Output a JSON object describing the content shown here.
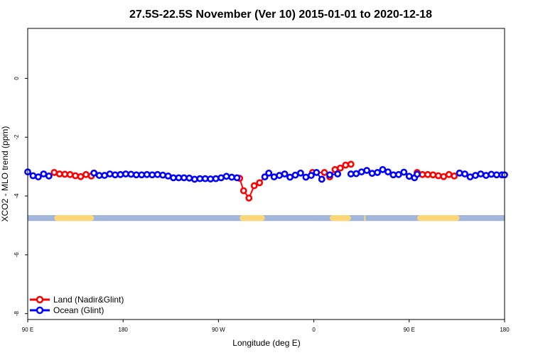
{
  "chart_data": {
    "type": "line",
    "title": "27.5S-22.5S November (Ver 10)   2015-01-01 to 2020-12-18",
    "xlabel": "Longitude (deg E)",
    "ylabel": "XCO2 - MLO trend (ppm)",
    "xlim": [
      90,
      450
    ],
    "ylim": [
      -8.2,
      1.7
    ],
    "x_ticks": [
      {
        "value": 90,
        "label": "90 E"
      },
      {
        "value": 162,
        "label": "180"
      },
      {
        "value": 234,
        "label": "90 W"
      },
      {
        "value": 306,
        "label": "0"
      },
      {
        "value": 378,
        "label": "90 E"
      },
      {
        "value": 450,
        "label": "180"
      }
    ],
    "y_ticks": [
      {
        "value": 0,
        "label": "0"
      },
      {
        "value": -2,
        "label": "-2"
      },
      {
        "value": -4,
        "label": "-4"
      },
      {
        "value": -6,
        "label": "-6"
      },
      {
        "value": -8,
        "label": "-8"
      }
    ],
    "grid": false,
    "legend_position": "bottom-left",
    "land_band": {
      "y_top": -4.65,
      "y_bottom": -4.85,
      "ocean_color": "#a2b5da",
      "land_color": "#fdd777",
      "land_segments": [
        [
          110,
          140
        ],
        [
          250,
          269
        ],
        [
          318,
          334
        ],
        [
          344,
          345
        ],
        [
          384,
          416
        ]
      ]
    },
    "series": [
      {
        "name": "Land (Nadir&Glint)",
        "color": "#ff0000",
        "segments": [
          {
            "x": [
              110,
              114,
              118,
              122,
              126,
              130,
              134,
              138,
              140
            ],
            "y": [
              -3.2,
              -3.25,
              -3.26,
              -3.27,
              -3.31,
              -3.34,
              -3.27,
              -3.32,
              -3.22
            ]
          },
          {
            "x": [
              250,
              253,
              257,
              261,
              265,
              269
            ],
            "y": [
              -3.4,
              -3.82,
              -4.07,
              -3.65,
              -3.55,
              -3.35
            ]
          },
          {
            "x": [
              305,
              314,
              318,
              322,
              326,
              330,
              334
            ],
            "y": [
              -3.2,
              -3.2,
              -3.35,
              -3.1,
              -3.05,
              -2.95,
              -2.92
            ]
          },
          {
            "x": [
              384,
              388,
              392,
              396,
              400,
              404,
              408,
              412,
              416
            ],
            "y": [
              -3.2,
              -3.27,
              -3.27,
              -3.28,
              -3.31,
              -3.34,
              -3.27,
              -3.32,
              -3.22
            ]
          }
        ]
      },
      {
        "name": "Ocean (Glint)",
        "color": "#0000ff",
        "segments": [
          {
            "x": [
              90,
              94,
              98,
              102,
              106
            ],
            "y": [
              -3.18,
              -3.31,
              -3.35,
              -3.25,
              -3.32
            ]
          },
          {
            "x": [
              140,
              144,
              148,
              152,
              156,
              160,
              164,
              168,
              172,
              176,
              180,
              184,
              188,
              192,
              196,
              200,
              204,
              208,
              212,
              216,
              220,
              224,
              228,
              232,
              236,
              240,
              244,
              248
            ],
            "y": [
              -3.22,
              -3.3,
              -3.3,
              -3.25,
              -3.28,
              -3.27,
              -3.25,
              -3.26,
              -3.28,
              -3.28,
              -3.27,
              -3.28,
              -3.27,
              -3.29,
              -3.32,
              -3.38,
              -3.38,
              -3.38,
              -3.39,
              -3.43,
              -3.41,
              -3.41,
              -3.42,
              -3.41,
              -3.38,
              -3.33,
              -3.36,
              -3.38
            ]
          },
          {
            "x": [
              269,
              272,
              276,
              280,
              284,
              288,
              292,
              296,
              300,
              304,
              308,
              312
            ],
            "y": [
              -3.35,
              -3.22,
              -3.35,
              -3.3,
              -3.25,
              -3.36,
              -3.29,
              -3.22,
              -3.36,
              -3.3,
              -3.2,
              -3.43
            ]
          },
          {
            "x": [
              318,
              324
            ],
            "y": [
              -3.28,
              -3.25
            ]
          },
          {
            "x": [
              334,
              338,
              342,
              346,
              350,
              354,
              358,
              362,
              366,
              370,
              374,
              378,
              382,
              384
            ],
            "y": [
              -3.25,
              -3.24,
              -3.18,
              -3.13,
              -3.23,
              -3.2,
              -3.1,
              -3.18,
              -3.28,
              -3.27,
              -3.19,
              -3.33,
              -3.38,
              -3.26
            ]
          },
          {
            "x": [
              416,
              420,
              424,
              428,
              432,
              436,
              440,
              444,
              448,
              450
            ],
            "y": [
              -3.22,
              -3.25,
              -3.35,
              -3.3,
              -3.25,
              -3.3,
              -3.26,
              -3.28,
              -3.28,
              -3.28
            ]
          }
        ]
      }
    ]
  }
}
